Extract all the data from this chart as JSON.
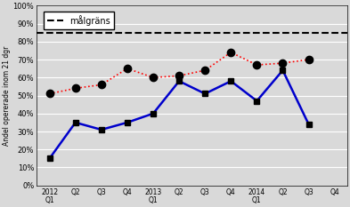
{
  "x_labels": [
    "2012\nQ1",
    "Q2",
    "Q3",
    "Q4",
    "2013\nQ1",
    "Q2",
    "Q3",
    "Q4",
    "2014\nQ1",
    "Q2",
    "Q3",
    "Q4"
  ],
  "x_positions": [
    0,
    1,
    2,
    3,
    4,
    5,
    6,
    7,
    8,
    9,
    10,
    11
  ],
  "blue_line": [
    0.15,
    0.35,
    0.31,
    0.35,
    0.4,
    0.58,
    0.51,
    0.58,
    0.47,
    0.64,
    0.34,
    null
  ],
  "red_dot": [
    0.51,
    0.54,
    0.56,
    0.65,
    0.6,
    0.61,
    0.64,
    0.74,
    0.67,
    0.68,
    0.7,
    null
  ],
  "target_line": 0.85,
  "ylabel": "Andel opererade inom 21 dgr",
  "ylim": [
    0,
    1.0
  ],
  "yticks": [
    0.0,
    0.1,
    0.2,
    0.3,
    0.4,
    0.5,
    0.6,
    0.7,
    0.8,
    0.9,
    1.0
  ],
  "ytick_labels": [
    "0%",
    "10%",
    "20%",
    "30%",
    "40%",
    "50%",
    "60%",
    "70%",
    "80%",
    "90%",
    "100%"
  ],
  "legend_label": "målgräns",
  "background_color": "#d9d9d9",
  "blue_color": "#0000cc",
  "red_color": "#ff0000",
  "target_color": "#000000"
}
